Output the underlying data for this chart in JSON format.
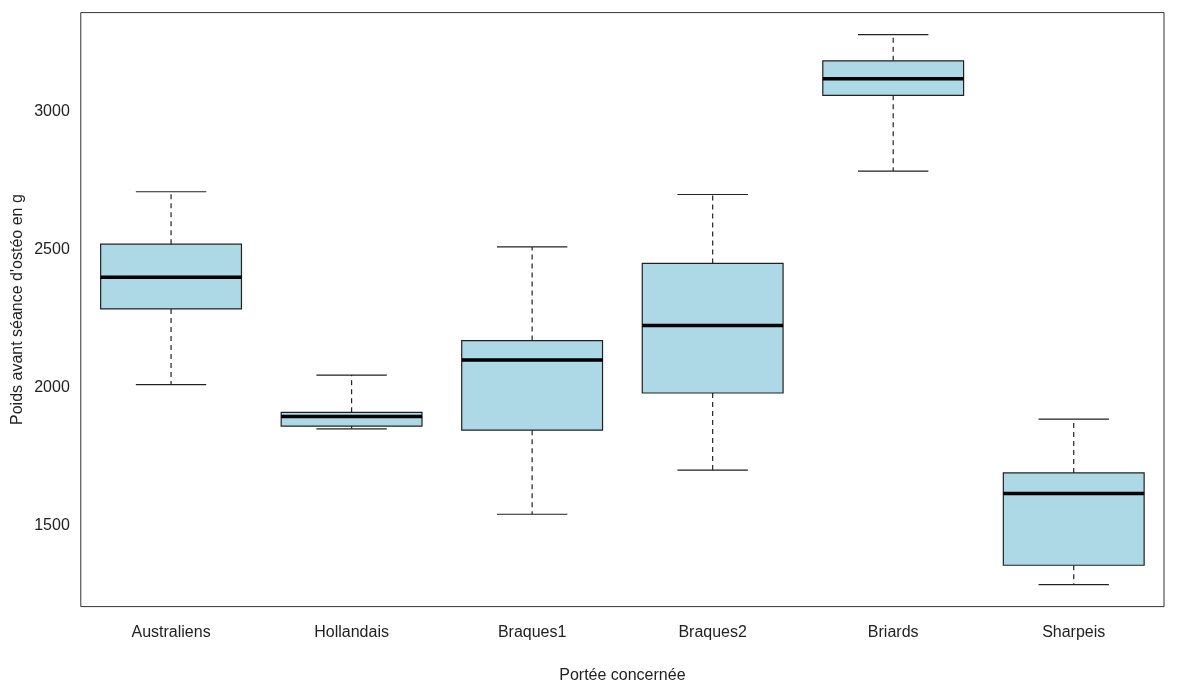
{
  "chart_data": {
    "type": "box",
    "xlabel": "Portée concernée",
    "ylabel": "Poids avant séance d'ostéo en g",
    "categories": [
      "Australiens",
      "Hollandais",
      "Braques1",
      "Braques2",
      "Briards",
      "Sharpeis"
    ],
    "color": "#add8e6",
    "boxes": [
      {
        "low": 2010,
        "q1": 2285,
        "median": 2400,
        "q3": 2520,
        "high": 2710
      },
      {
        "low": 1850,
        "q1": 1860,
        "median": 1895,
        "q3": 1910,
        "high": 2045
      },
      {
        "low": 1540,
        "q1": 1845,
        "median": 2100,
        "q3": 2170,
        "high": 2510
      },
      {
        "low": 1700,
        "q1": 1980,
        "median": 2225,
        "q3": 2450,
        "high": 2700
      },
      {
        "low": 2785,
        "q1": 3060,
        "median": 3120,
        "q3": 3185,
        "high": 3280
      },
      {
        "low": 1285,
        "q1": 1355,
        "median": 1615,
        "q3": 1690,
        "high": 1885
      }
    ],
    "ylim": [
      1205,
      3360
    ],
    "yticks": [
      1500,
      2000,
      2500,
      3000
    ]
  }
}
